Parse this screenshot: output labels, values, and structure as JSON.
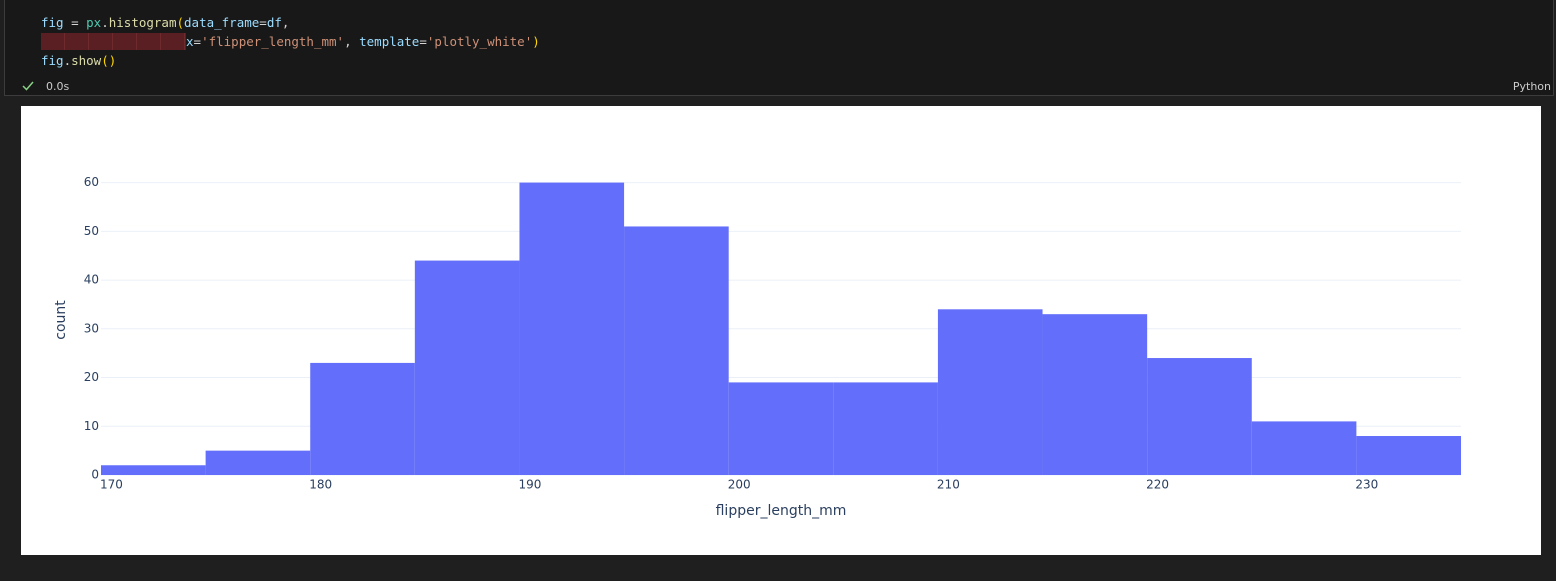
{
  "code": {
    "lines": [
      [
        "fig",
        " = ",
        "px",
        ".",
        "histogram",
        "(",
        "data_frame",
        "=",
        "df",
        ","
      ],
      [
        "x",
        "=",
        "'flipper_length_mm'",
        ", ",
        "template",
        "=",
        "'plotly_white'",
        ")"
      ],
      [
        "fig",
        ".",
        "show",
        "()"
      ]
    ]
  },
  "status": {
    "time": "0.0s",
    "language": "Python"
  },
  "chart_data": {
    "type": "histogram",
    "bins": [
      169.5,
      174.5,
      179.5,
      184.5,
      189.5,
      194.5,
      199.5,
      204.5,
      209.5,
      214.5,
      219.5,
      224.5,
      229.5,
      234.5
    ],
    "values": [
      2,
      5,
      23,
      44,
      60,
      51,
      19,
      19,
      34,
      33,
      24,
      11,
      8
    ],
    "color": "#636efa",
    "x_label": "flipper_length_mm",
    "y_label": "count",
    "xlim": [
      169.5,
      234.5
    ],
    "xticks": [
      170,
      180,
      190,
      200,
      210,
      220,
      230
    ],
    "ylim": [
      0,
      63.2
    ],
    "yticks": [
      0,
      10,
      20,
      30,
      40,
      50,
      60
    ],
    "grid": true
  }
}
